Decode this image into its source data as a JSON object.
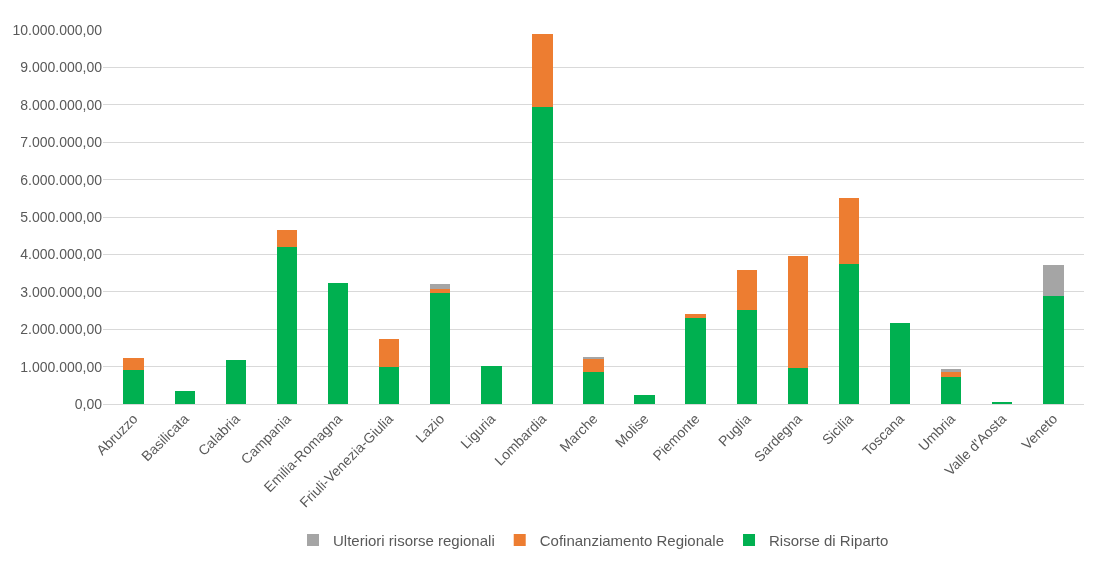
{
  "chart_data": {
    "type": "bar",
    "stacked": true,
    "categories": [
      "Abruzzo",
      "Basilicata",
      "Calabria",
      "Campania",
      "Emilia-Romagna",
      "Friuli-Venezia-Giulia",
      "Lazio",
      "Liguria",
      "Lombardia",
      "Marche",
      "Molise",
      "Piemonte",
      "Puglia",
      "Sardegna",
      "Sicilia",
      "Toscana",
      "Umbria",
      "Valle d'Aosta",
      "Veneto"
    ],
    "series": [
      {
        "name": "Risorse di Riparto",
        "color": "#00b050",
        "values": [
          920000,
          340000,
          1180000,
          4200000,
          3240000,
          1000000,
          2960000,
          1020000,
          7930000,
          850000,
          240000,
          2290000,
          2510000,
          960000,
          3750000,
          2160000,
          730000,
          50000,
          2880000
        ]
      },
      {
        "name": "Cofinanziamento Regionale",
        "color": "#ed7d31",
        "values": [
          300000,
          null,
          null,
          440000,
          null,
          730000,
          110000,
          null,
          1970000,
          340000,
          null,
          120000,
          1060000,
          2990000,
          1750000,
          null,
          130000,
          null,
          null
        ]
      },
      {
        "name": "Ulteriori risorse regionali",
        "color": "#a5a5a5",
        "values": [
          null,
          null,
          null,
          null,
          null,
          null,
          130000,
          null,
          null,
          60000,
          null,
          null,
          null,
          null,
          null,
          null,
          80000,
          null,
          830000
        ]
      }
    ],
    "ylim": [
      0,
      10000000
    ],
    "yticks": [
      {
        "value": 0,
        "label": "0,00"
      },
      {
        "value": 1000000,
        "label": "1.000.000,00"
      },
      {
        "value": 2000000,
        "label": "2.000.000,00"
      },
      {
        "value": 3000000,
        "label": "3.000.000,00"
      },
      {
        "value": 4000000,
        "label": "4.000.000,00"
      },
      {
        "value": 5000000,
        "label": "5.000.000,00"
      },
      {
        "value": 6000000,
        "label": "6.000.000,00"
      },
      {
        "value": 7000000,
        "label": "7.000.000,00"
      },
      {
        "value": 8000000,
        "label": "8.000.000,00"
      },
      {
        "value": 9000000,
        "label": "9.000.000,00"
      },
      {
        "value": 10000000,
        "label": "10.000.000,00"
      }
    ],
    "grid": "y",
    "legend": "bottom"
  }
}
